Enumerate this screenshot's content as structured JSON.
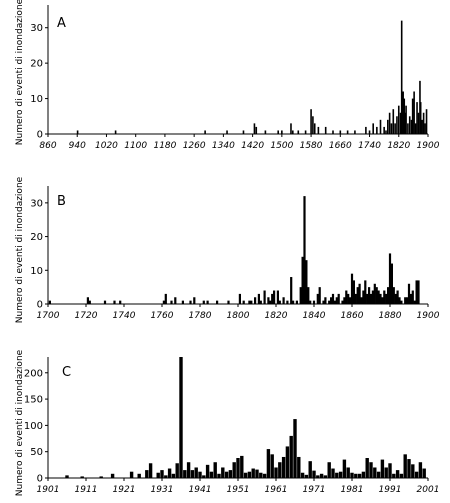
{
  "chart_data": [
    {
      "type": "bar",
      "panel_label": "A",
      "ylabel": "Numero di eventi di inondazione",
      "xlim": [
        860,
        1900
      ],
      "ylim": [
        0,
        35
      ],
      "xticks": [
        860,
        940,
        1020,
        1100,
        1180,
        1260,
        1340,
        1420,
        1500,
        1580,
        1660,
        1740,
        1820,
        1900
      ],
      "yticks": [
        0,
        10,
        20,
        30
      ],
      "x": [
        941,
        1045,
        1290,
        1350,
        1395,
        1425,
        1430,
        1455,
        1490,
        1500,
        1525,
        1530,
        1545,
        1565,
        1580,
        1585,
        1590,
        1600,
        1620,
        1640,
        1660,
        1680,
        1700,
        1730,
        1740,
        1750,
        1760,
        1770,
        1780,
        1785,
        1790,
        1795,
        1800,
        1805,
        1810,
        1815,
        1820,
        1825,
        1828,
        1832,
        1835,
        1838,
        1840,
        1845,
        1850,
        1855,
        1858,
        1862,
        1866,
        1870,
        1874,
        1878,
        1880,
        1884,
        1888,
        1892,
        1896
      ],
      "values": [
        1,
        1,
        1,
        1,
        1,
        3,
        2,
        1,
        1,
        1,
        3,
        1,
        1,
        1,
        7,
        5,
        3,
        2,
        2,
        1,
        1,
        1,
        1,
        2,
        1,
        3,
        2,
        4,
        2,
        1,
        4,
        6,
        3,
        7,
        3,
        5,
        8,
        6,
        32,
        12,
        10,
        6,
        8,
        3,
        5,
        4,
        10,
        12,
        3,
        9,
        6,
        15,
        9,
        4,
        6,
        3,
        7
      ]
    },
    {
      "type": "bar",
      "panel_label": "B",
      "ylabel": "Numero di eventi di inondazione",
      "xlim": [
        1700,
        1900
      ],
      "ylim": [
        0,
        35
      ],
      "xticks": [
        1700,
        1720,
        1740,
        1760,
        1780,
        1800,
        1820,
        1840,
        1860,
        1880,
        1900
      ],
      "yticks": [
        0,
        10,
        20,
        30
      ],
      "x": [
        1701,
        1721,
        1722,
        1730,
        1735,
        1738,
        1761,
        1762,
        1765,
        1767,
        1771,
        1775,
        1777,
        1782,
        1784,
        1789,
        1795,
        1801,
        1803,
        1806,
        1807,
        1809,
        1811,
        1812,
        1814,
        1816,
        1817,
        1818,
        1819,
        1821,
        1822,
        1824,
        1826,
        1828,
        1829,
        1831,
        1833,
        1834,
        1835,
        1836,
        1837,
        1838,
        1840,
        1842,
        1843,
        1845,
        1846,
        1848,
        1849,
        1850,
        1851,
        1852,
        1853,
        1855,
        1856,
        1857,
        1858,
        1859,
        1860,
        1861,
        1862,
        1863,
        1864,
        1865,
        1866,
        1867,
        1868,
        1869,
        1870,
        1871,
        1872,
        1873,
        1874,
        1875,
        1876,
        1877,
        1878,
        1879,
        1880,
        1881,
        1882,
        1883,
        1884,
        1885,
        1886,
        1888,
        1889,
        1890,
        1891,
        1892,
        1893,
        1894,
        1895
      ],
      "values": [
        1,
        2,
        1,
        1,
        1,
        1,
        1,
        3,
        1,
        2,
        1,
        1,
        2,
        1,
        1,
        1,
        1,
        3,
        1,
        1,
        1,
        2,
        3,
        1,
        4,
        2,
        1,
        3,
        4,
        4,
        1,
        2,
        1,
        8,
        1,
        1,
        5,
        14,
        32,
        13,
        5,
        1,
        1,
        3,
        5,
        1,
        2,
        1,
        2,
        3,
        1,
        2,
        3,
        1,
        2,
        4,
        3,
        2,
        9,
        7,
        3,
        5,
        6,
        2,
        4,
        7,
        3,
        5,
        3,
        4,
        6,
        5,
        4,
        3,
        2,
        4,
        3,
        5,
        15,
        12,
        5,
        3,
        4,
        2,
        1,
        2,
        2,
        6,
        3,
        4,
        1,
        7,
        7
      ]
    },
    {
      "type": "bar",
      "panel_label": "C",
      "ylabel": "Numero di eventi di inondazione",
      "xlim": [
        1901,
        2001
      ],
      "ylim": [
        0,
        230
      ],
      "xticks": [
        1901,
        1911,
        1921,
        1931,
        1941,
        1951,
        1961,
        1971,
        1981,
        1991,
        2001
      ],
      "yticks": [
        0,
        50,
        100,
        150,
        200
      ],
      "x": [
        1906,
        1910,
        1915,
        1918,
        1923,
        1925,
        1927,
        1928,
        1930,
        1931,
        1932,
        1933,
        1934,
        1935,
        1936,
        1937,
        1938,
        1939,
        1940,
        1941,
        1942,
        1943,
        1944,
        1945,
        1946,
        1947,
        1948,
        1949,
        1950,
        1951,
        1952,
        1953,
        1954,
        1955,
        1956,
        1957,
        1958,
        1959,
        1960,
        1961,
        1962,
        1963,
        1964,
        1965,
        1966,
        1967,
        1968,
        1969,
        1970,
        1971,
        1972,
        1973,
        1974,
        1975,
        1976,
        1977,
        1978,
        1979,
        1980,
        1981,
        1982,
        1983,
        1984,
        1985,
        1986,
        1987,
        1988,
        1989,
        1990,
        1991,
        1992,
        1993,
        1994,
        1995,
        1996,
        1997,
        1998,
        1999,
        2000
      ],
      "values": [
        5,
        3,
        3,
        8,
        12,
        8,
        15,
        28,
        10,
        15,
        5,
        18,
        8,
        28,
        230,
        15,
        30,
        15,
        20,
        12,
        5,
        25,
        12,
        30,
        8,
        20,
        12,
        15,
        30,
        38,
        42,
        10,
        12,
        18,
        16,
        10,
        8,
        55,
        45,
        20,
        30,
        40,
        60,
        80,
        112,
        40,
        10,
        6,
        32,
        14,
        5,
        8,
        5,
        30,
        18,
        10,
        12,
        35,
        20,
        10,
        8,
        8,
        12,
        38,
        30,
        20,
        12,
        35,
        20,
        28,
        8,
        15,
        8,
        45,
        36,
        26,
        12,
        30,
        18
      ]
    }
  ]
}
